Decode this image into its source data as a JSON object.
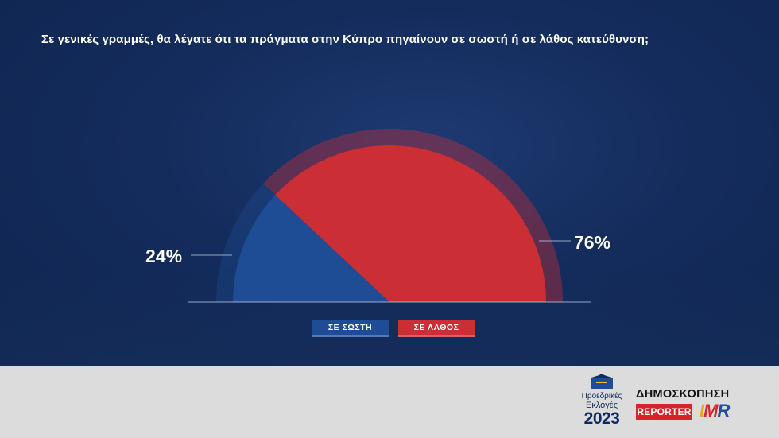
{
  "chart_data": {
    "type": "pie",
    "variant": "semicircle",
    "title": "Σε γενικές γραμμές, θα λέγατε ότι τα πράγματα στην Κύπρο πηγαίνουν σε σωστή ή σε λάθος κατεύθυνση;",
    "categories": [
      "ΣΕ ΣΩΣΤΗ",
      "ΣΕ ΛΑΘΟΣ"
    ],
    "values": [
      24,
      76
    ],
    "labels": [
      "24%",
      "76%"
    ],
    "colors": [
      "#1e4d95",
      "#cb2e35"
    ],
    "legend_placement": "bottom"
  },
  "footer": {
    "elections_logo": {
      "line1": "Προεδρικές",
      "line2": "Εκλογές",
      "year": "2023"
    },
    "poll_title": "ΔΗΜΟΣΚΟΠΗΣΗ",
    "reporter_label": "REPORTER",
    "imr_label": [
      "I",
      "M",
      "R"
    ]
  }
}
